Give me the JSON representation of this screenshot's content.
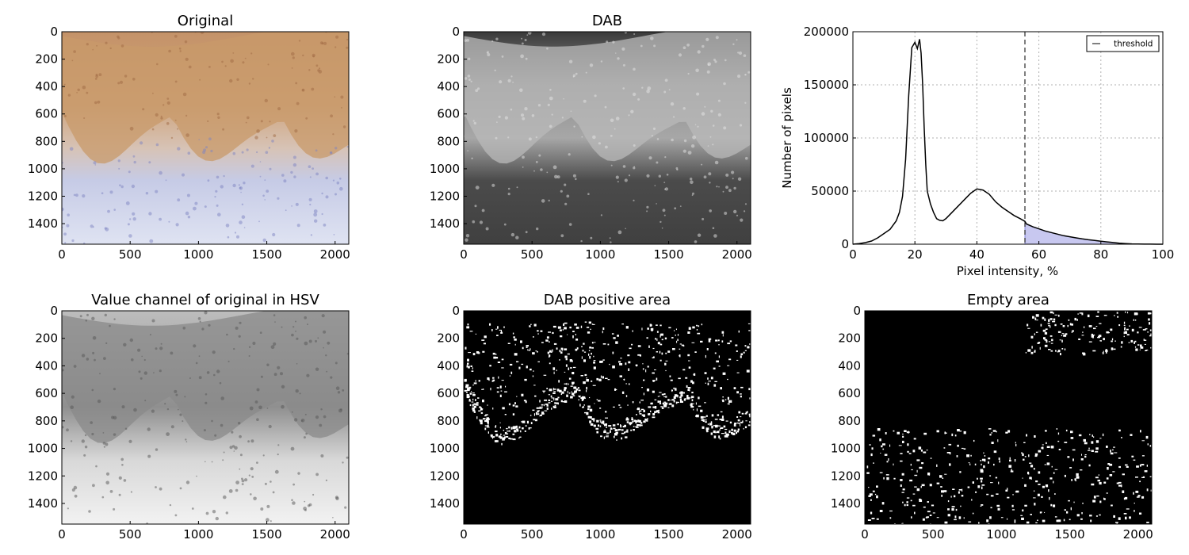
{
  "figure": {
    "panels": [
      {
        "title": "Original",
        "content": "rgb-tissue",
        "xticks": [
          "0",
          "500",
          "1000",
          "1500",
          "2000"
        ],
        "yticks": [
          "0",
          "200",
          "400",
          "600",
          "800",
          "1000",
          "1200",
          "1400"
        ]
      },
      {
        "title": "DAB",
        "content": "gray-dab",
        "xticks": [
          "0",
          "500",
          "1000",
          "1500",
          "2000"
        ],
        "yticks": [
          "0",
          "200",
          "400",
          "600",
          "800",
          "1000",
          "1200",
          "1400"
        ]
      },
      {
        "title": "Value channel of original in HSV",
        "content": "gray-value",
        "xticks": [
          "0",
          "500",
          "1000",
          "1500",
          "2000"
        ],
        "yticks": [
          "0",
          "200",
          "400",
          "600",
          "800",
          "1000",
          "1200",
          "1400"
        ]
      },
      {
        "title": "DAB positive area",
        "content": "binary-dab",
        "xticks": [
          "0",
          "500",
          "1000",
          "1500",
          "2000"
        ],
        "yticks": [
          "0",
          "200",
          "400",
          "600",
          "800",
          "1000",
          "1200",
          "1400"
        ]
      },
      {
        "title": "Empty area",
        "content": "binary-empty",
        "xticks": [
          "0",
          "500",
          "1000",
          "1500",
          "2000"
        ],
        "yticks": [
          "0",
          "200",
          "400",
          "600",
          "800",
          "1000",
          "1200",
          "1400"
        ]
      }
    ]
  },
  "colors": {
    "histogram_line": "#000000",
    "fill": "#c8c8f0",
    "fill_edge": "#6a6ad8",
    "grid": "#b0b0b0",
    "tissue_brown": "#c89a6a",
    "tissue_blue": "#c9cde6"
  },
  "chart_data": {
    "type": "line",
    "title": "",
    "xlabel": "Pixel intensity, %",
    "ylabel": "Number of pixels",
    "xlim": [
      0,
      100
    ],
    "ylim": [
      0,
      200000
    ],
    "xticks": [
      0,
      20,
      40,
      60,
      80,
      100
    ],
    "yticks": [
      0,
      50000,
      100000,
      150000,
      200000
    ],
    "grid": true,
    "legend": {
      "position": "top-right",
      "entries": [
        "threshold"
      ]
    },
    "threshold": 55.5,
    "series": [
      {
        "x": [
          0,
          2,
          4,
          6,
          8,
          10,
          12,
          14,
          15,
          16,
          17,
          18,
          19,
          20,
          20.8,
          21.5,
          22,
          22.5,
          23,
          23.5,
          24,
          25,
          26,
          27,
          28,
          29,
          30,
          31,
          32,
          34,
          36,
          38,
          40,
          42,
          44,
          46,
          48,
          50,
          52,
          54,
          55.5,
          56,
          58,
          60,
          62,
          64,
          66,
          68,
          70,
          72,
          74,
          76,
          78,
          80,
          82,
          84,
          86,
          88,
          90,
          92,
          94,
          96,
          98,
          100
        ],
        "y": [
          0,
          500,
          1500,
          3000,
          6000,
          10000,
          14000,
          22000,
          30000,
          45000,
          80000,
          140000,
          185000,
          190000,
          184000,
          193000,
          180000,
          150000,
          110000,
          75000,
          50000,
          38000,
          30000,
          24000,
          22500,
          22000,
          24000,
          27000,
          30000,
          36000,
          42000,
          48000,
          52000,
          51000,
          47000,
          40000,
          35000,
          31000,
          27000,
          24000,
          21500,
          19000,
          16500,
          14500,
          12500,
          11000,
          9500,
          8000,
          7000,
          6000,
          5000,
          4200,
          3500,
          2800,
          2200,
          1600,
          1000,
          600,
          300,
          150,
          80,
          40,
          10,
          0
        ]
      }
    ]
  }
}
